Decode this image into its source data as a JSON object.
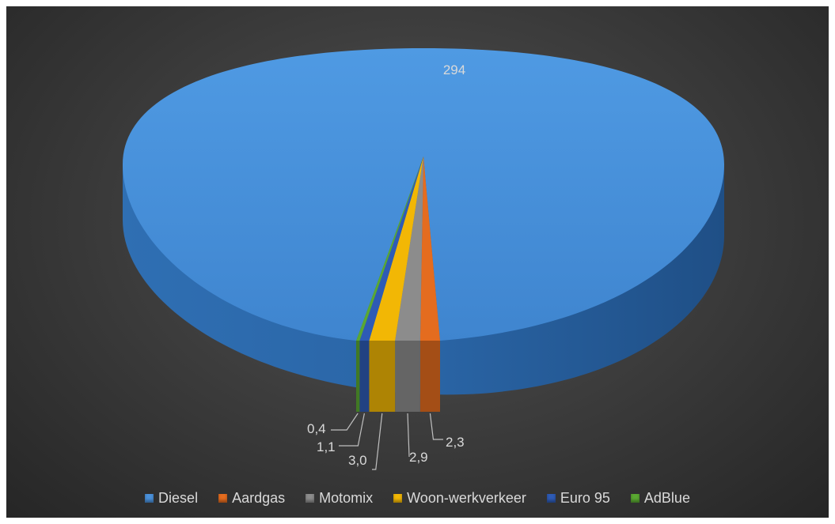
{
  "chart_data": {
    "type": "pie",
    "style": "3d",
    "categories": [
      "Diesel",
      "Aardgas",
      "Motomix",
      "Woon-werkverkeer",
      "Euro 95",
      "AdBlue"
    ],
    "values": [
      294,
      2.3,
      2.9,
      3.0,
      1.1,
      0.4
    ],
    "data_labels": [
      "294",
      "2,3",
      "2,9",
      "3,0",
      "1,1",
      "0,4"
    ],
    "colors": [
      "#4a90d9",
      "#e46c1f",
      "#8c8c8c",
      "#f2b705",
      "#2e5bb5",
      "#5aa832"
    ],
    "legend_position": "bottom"
  }
}
